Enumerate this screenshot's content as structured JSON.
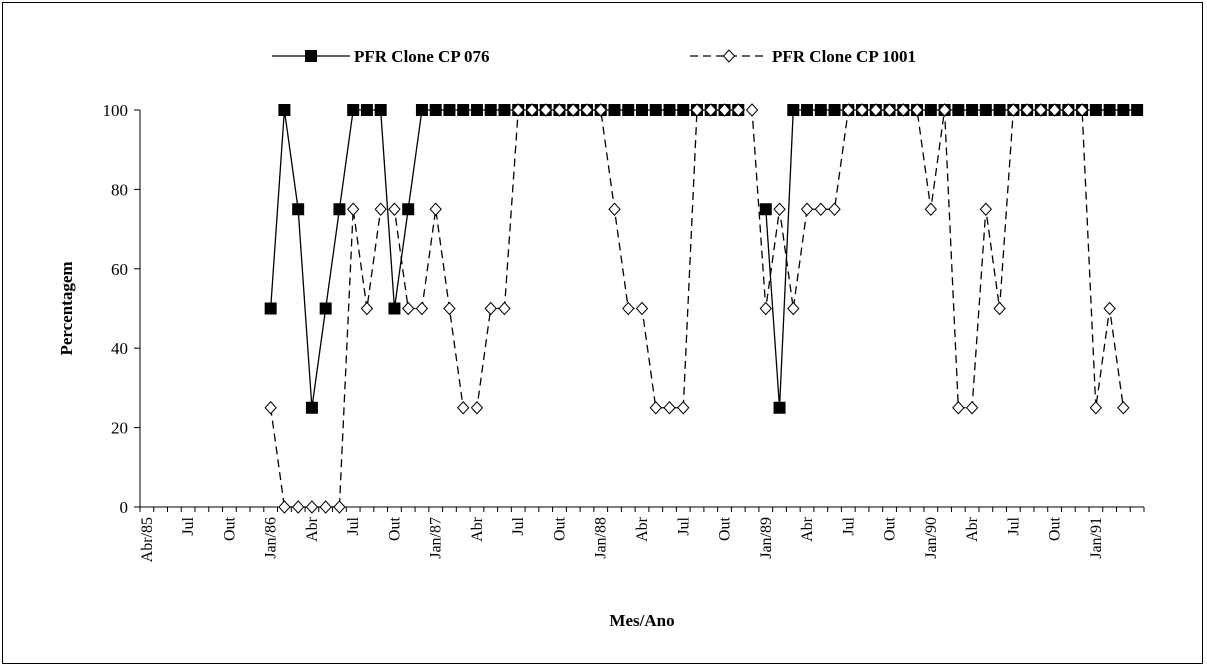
{
  "chart_data": {
    "type": "line",
    "title": "",
    "xlabel": "Mes/Ano",
    "ylabel": "Percentagem",
    "ylim": [
      0,
      100
    ],
    "yticks": [
      0,
      20,
      40,
      60,
      80,
      100
    ],
    "grid": false,
    "legend_position": "top",
    "x": [
      "Abr/85",
      "Mai/85",
      "Jun/85",
      "Jul/85",
      "Ago/85",
      "Set/85",
      "Out/85",
      "Nov/85",
      "Dez/85",
      "Jan/86",
      "Fev/86",
      "Mar/86",
      "Abr/86",
      "Mai/86",
      "Jun/86",
      "Jul/86",
      "Ago/86",
      "Set/86",
      "Out/86",
      "Nov/86",
      "Dez/86",
      "Jan/87",
      "Fev/87",
      "Mar/87",
      "Abr/87",
      "Mai/87",
      "Jun/87",
      "Jul/87",
      "Ago/87",
      "Set/87",
      "Out/87",
      "Nov/87",
      "Dez/87",
      "Jan/88",
      "Fev/88",
      "Mar/88",
      "Abr/88",
      "Mai/88",
      "Jun/88",
      "Jul/88",
      "Ago/88",
      "Set/88",
      "Out/88",
      "Nov/88",
      "Dez/88",
      "Jan/89",
      "Fev/89",
      "Mar/89",
      "Abr/89",
      "Mai/89",
      "Jun/89",
      "Jul/89",
      "Ago/89",
      "Set/89",
      "Out/89",
      "Nov/89",
      "Dez/89",
      "Jan/90",
      "Fev/90",
      "Mar/90",
      "Abr/90",
      "Mai/90",
      "Jun/90",
      "Jul/90",
      "Ago/90",
      "Set/90",
      "Out/90",
      "Nov/90",
      "Dez/90",
      "Jan/91",
      "Fev/91",
      "Mar/91",
      "Abr/91"
    ],
    "tick_labels": [
      "Abr/85",
      "Jul",
      "Out",
      "Jan/86",
      "Abr",
      "Jul",
      "Out",
      "Jan/87",
      "Abr",
      "Jul",
      "Out",
      "Jan/88",
      "Abr",
      "Jul",
      "Out",
      "Jan/89",
      "Abr",
      "Jul",
      "Out",
      "Jan/90",
      "Abr",
      "Jul",
      "Out",
      "Jan/91"
    ],
    "series": [
      {
        "name": "PFR Clone CP 076",
        "color": "#000000",
        "marker": "filled-square",
        "dash": "solid",
        "values": [
          null,
          null,
          null,
          null,
          null,
          null,
          null,
          null,
          null,
          50,
          100,
          75,
          25,
          50,
          75,
          100,
          100,
          100,
          50,
          75,
          100,
          100,
          100,
          100,
          100,
          100,
          100,
          100,
          100,
          100,
          100,
          100,
          100,
          100,
          100,
          100,
          100,
          100,
          100,
          100,
          100,
          100,
          100,
          100,
          null,
          75,
          25,
          100,
          100,
          100,
          100,
          100,
          100,
          100,
          100,
          100,
          100,
          100,
          100,
          100,
          100,
          100,
          100,
          100,
          100,
          100,
          100,
          100,
          100,
          100,
          100,
          100,
          100
        ]
      },
      {
        "name": "PFR Clone CP 1001",
        "color": "#000000",
        "marker": "open-diamond",
        "dash": "dashed",
        "values": [
          null,
          null,
          null,
          null,
          null,
          null,
          null,
          null,
          null,
          25,
          0,
          0,
          0,
          0,
          0,
          75,
          50,
          75,
          75,
          50,
          50,
          75,
          50,
          25,
          25,
          50,
          50,
          100,
          100,
          100,
          100,
          100,
          100,
          100,
          75,
          50,
          50,
          25,
          25,
          25,
          100,
          100,
          100,
          100,
          100,
          50,
          75,
          50,
          75,
          75,
          75,
          100,
          100,
          100,
          100,
          100,
          100,
          75,
          100,
          25,
          25,
          75,
          50,
          100,
          100,
          100,
          100,
          100,
          100,
          25,
          50,
          25,
          null
        ]
      }
    ]
  }
}
